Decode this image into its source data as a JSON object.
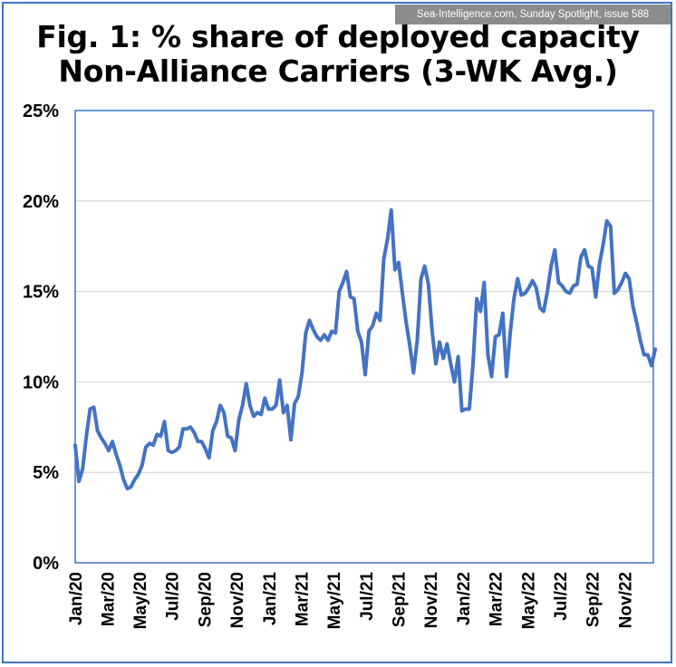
{
  "source_label": "Sea-Intelligence.com, Sunday Spotlight, issue 588",
  "colors": {
    "line": "#4472c4",
    "grid": "#d0d0d0",
    "plot_border": "#3f74c6",
    "source_bg": "#8c8c8c"
  },
  "chart_data": {
    "type": "line",
    "title_line1": "Fig. 1: % share of deployed capacity",
    "title_line2": "Non-Alliance Carriers (3-WK Avg.)",
    "xlabel": "",
    "ylabel": "",
    "ylim": [
      0,
      25
    ],
    "yticks": [
      "0%",
      "5%",
      "10%",
      "15%",
      "20%",
      "25%"
    ],
    "ytick_values": [
      0,
      5,
      10,
      15,
      20,
      25
    ],
    "xtick_labels": [
      "Jan/20",
      "Mar/20",
      "May/20",
      "Jul/20",
      "Sep/20",
      "Nov/20",
      "Jan/21",
      "Mar/21",
      "May/21",
      "Jul/21",
      "Sep/21",
      "Nov/21",
      "Jan/22",
      "Mar/22",
      "May/22",
      "Jul/22",
      "Sep/22",
      "Nov/22"
    ],
    "xtick_weeks": [
      0,
      8.7,
      17.3,
      26,
      34.7,
      43.4,
      52.1,
      60.8,
      69.5,
      78.2,
      86.9,
      95.6,
      104.3,
      113,
      121.7,
      130.4,
      139.1,
      147.8
    ],
    "x_range": [
      0,
      155.5
    ],
    "series": [
      {
        "name": "Non-Alliance Carriers",
        "x_unit": "week",
        "values": [
          6.5,
          4.5,
          5.2,
          7.0,
          8.5,
          8.6,
          7.3,
          6.9,
          6.6,
          6.2,
          6.7,
          6.0,
          5.4,
          4.6,
          4.1,
          4.2,
          4.6,
          4.9,
          5.4,
          6.4,
          6.6,
          6.5,
          7.1,
          7.0,
          7.8,
          6.2,
          6.1,
          6.2,
          6.4,
          7.4,
          7.4,
          7.5,
          7.2,
          6.7,
          6.7,
          6.3,
          5.8,
          7.3,
          7.8,
          8.7,
          8.3,
          7.0,
          6.9,
          6.2,
          7.9,
          8.7,
          9.9,
          8.7,
          8.1,
          8.3,
          8.2,
          9.1,
          8.5,
          8.5,
          8.7,
          10.1,
          8.3,
          8.7,
          6.8,
          8.8,
          9.2,
          10.5,
          12.7,
          13.4,
          12.9,
          12.5,
          12.3,
          12.6,
          12.3,
          12.8,
          12.7,
          15.0,
          15.5,
          16.1,
          14.7,
          14.6,
          12.8,
          12.2,
          10.4,
          12.8,
          13.1,
          13.8,
          13.4,
          16.8,
          17.9,
          19.5,
          16.2,
          16.6,
          14.9,
          13.3,
          12.0,
          10.5,
          12.3,
          15.7,
          16.4,
          15.4,
          12.8,
          11.0,
          12.2,
          11.3,
          12.1,
          11.0,
          10.0,
          11.4,
          8.4,
          8.5,
          8.5,
          11.0,
          14.6,
          13.9,
          15.5,
          11.5,
          10.3,
          12.5,
          12.6,
          13.8,
          10.3,
          12.7,
          14.6,
          15.7,
          14.8,
          14.9,
          15.2,
          15.6,
          15.2,
          14.1,
          13.9,
          15.0,
          16.4,
          17.3,
          15.5,
          15.3,
          15.0,
          14.9,
          15.3,
          15.4,
          16.9,
          17.3,
          16.4,
          16.3,
          14.7,
          16.5,
          17.6,
          18.9,
          18.6,
          14.9,
          15.1,
          15.5,
          16.0,
          15.7,
          14.2,
          13.3,
          12.3,
          11.5,
          11.5,
          10.9,
          11.8
        ]
      }
    ]
  }
}
